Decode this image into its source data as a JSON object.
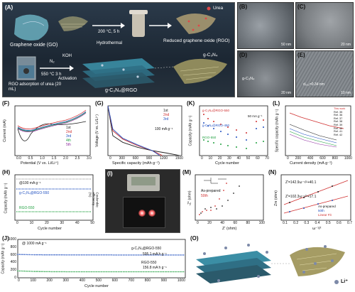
{
  "schematic": {
    "label": "(A)",
    "go_label": "Graphene oxide (GO)",
    "step1_top": "200 °C, 5 h",
    "step1_bottom": "Hydrothermal",
    "rgo_label": "Reduced graphene oxide (RGO)",
    "urea_legend": "Urea",
    "adsorption_label": "RGO adsorption of urea (20 mL)",
    "step2_top": "N₂",
    "step2_bottom": "550 °C 3 h",
    "step3_top": "KOH",
    "step3_bottom": "Activation",
    "composite_label": "g-C₃N₄@RGO",
    "gcn_label": "g-C₃N₄"
  },
  "micrographs": {
    "B": {
      "label": "(B)",
      "scale": "50 nm"
    },
    "C": {
      "label": "(C)",
      "scale": "20 nm"
    },
    "D": {
      "label": "(D)",
      "scale": "20 nm",
      "tag": "g-C₃N₄"
    },
    "E": {
      "label": "(E)",
      "scale": "10 nm",
      "tag": "d₀₀₂=0.34 nm"
    }
  },
  "panel_f": {
    "label": "(F)",
    "xlabel": "Potential (V vs. Li/Li⁺)",
    "ylabel": "Current (mA)",
    "legend": [
      "1st",
      "2nd",
      "3rd",
      "4th",
      "5th"
    ],
    "xticks": [
      "0.0",
      "0.5",
      "1.0",
      "1.5",
      "2.0",
      "2.5",
      "3.0"
    ]
  },
  "panel_g": {
    "label": "(G)",
    "xlabel": "Specific capacity (mAh g⁻¹)",
    "ylabel": "Voltage (V vs. Li/Li⁺)",
    "legend": [
      "1st",
      "2nd",
      "3rd"
    ],
    "note": "100 mA g⁻¹",
    "xticks": [
      "0",
      "300",
      "600",
      "900",
      "1200",
      "1500"
    ],
    "yticks": [
      "0",
      "1",
      "2",
      "3"
    ]
  },
  "panel_k": {
    "label": "(K)",
    "xlabel": "Cycle number",
    "ylabel": "Capacity (mAh g⁻¹)",
    "series": [
      "g-C₃N₄@RGO-550",
      "g-C₃N₄@RGO-450",
      "RGO-550"
    ],
    "rates": [
      "50 mA g⁻¹",
      "100",
      "200",
      "300",
      "500",
      "800"
    ],
    "xticks": [
      "0",
      "10",
      "20",
      "30",
      "40",
      "50",
      "60",
      "70"
    ]
  },
  "panel_l": {
    "label": "(L)",
    "xlabel": "Current density (mA g⁻¹)",
    "ylabel": "Specific capacity (mAh g⁻¹)",
    "legend": [
      "This work",
      "Ref. 35",
      "Ref. 36",
      "Ref. 37",
      "Ref. 38",
      "Ref. 39",
      "Ref. 40",
      "Ref. 41",
      "Ref. 42"
    ],
    "xticks": [
      "0",
      "200",
      "400",
      "600",
      "800",
      "1000"
    ]
  },
  "panel_h": {
    "label": "(H)",
    "xlabel": "Cycle number",
    "ylabel": "Capacity (mAh g⁻¹)",
    "ylabel2": "Coulombic efficiency (%)",
    "note": "@100 mA g⁻¹",
    "series": [
      "g-C₃N₄@RGO-550",
      "RGO-550"
    ],
    "xticks": [
      "0",
      "10",
      "20",
      "30",
      "40",
      "50"
    ]
  },
  "panel_i": {
    "label": "(I)"
  },
  "panel_m": {
    "label": "(M)",
    "xlabel": "Z' (ohm)",
    "ylabel": "-Z'' (ohm)",
    "legend": [
      "As-prepared",
      "50th"
    ],
    "xticks": [
      "0",
      "20",
      "40",
      "60",
      "80",
      "100"
    ]
  },
  "panel_n": {
    "label": "(N)",
    "xlabel": "ω⁻¹/²",
    "ylabel": "Zre (ohm)",
    "eq1": "Z'=142.9ω⁻¹/²+40.1",
    "eq2": "Z'=102.3ω⁻¹/²+17.1",
    "legend": [
      "As-prepared",
      "50th",
      "Linear Fit"
    ],
    "xticks": [
      "0.1",
      "0.2",
      "0.3",
      "0.4",
      "0.5",
      "0.6",
      "0.7"
    ]
  },
  "panel_j": {
    "label": "(J)",
    "xlabel": "Cycle number",
    "ylabel": "Capacity (mAh g⁻¹)",
    "note": "@ 1000 mA g⁻¹",
    "series1": "g-C₃N₄@RGO-550",
    "value1": "595.1 mA h g⁻¹",
    "series2": "RGO-550",
    "value2": "156.8 mA h g⁻¹",
    "xticks": [
      "0",
      "100",
      "200",
      "300",
      "400",
      "500",
      "600",
      "700",
      "800",
      "900",
      "1000"
    ],
    "yticks": [
      "0",
      "200",
      "400",
      "600",
      "800",
      "1000"
    ]
  },
  "panel_o": {
    "label": "(O)",
    "ion": "Li⁺"
  },
  "chart_data": [
    {
      "panel": "G",
      "type": "line",
      "series": [
        {
          "name": "1st",
          "x": [
            0,
            100,
            300,
            600,
            900,
            1200,
            1450
          ],
          "y": [
            3.0,
            1.2,
            0.8,
            0.5,
            0.3,
            0.15,
            0.01
          ]
        },
        {
          "name": "2nd",
          "x": [
            0,
            100,
            300,
            600,
            900,
            1100
          ],
          "y": [
            3.0,
            1.5,
            1.0,
            0.6,
            0.3,
            0.01
          ]
        },
        {
          "name": "3rd",
          "x": [
            0,
            100,
            300,
            600,
            900,
            1050
          ],
          "y": [
            3.0,
            1.6,
            1.05,
            0.65,
            0.3,
            0.01
          ]
        }
      ],
      "xlim": [
        0,
        1500
      ],
      "ylim": [
        0,
        3
      ]
    },
    {
      "panel": "J",
      "type": "scatter",
      "series": [
        {
          "name": "g-C₃N₄@RGO-550",
          "x": [
            0,
            100,
            200,
            300,
            400,
            500,
            600,
            700,
            800,
            900,
            1000
          ],
          "y": [
            610,
            600,
            598,
            597,
            596,
            596,
            595,
            595,
            595,
            595,
            595
          ]
        },
        {
          "name": "RGO-550",
          "x": [
            0,
            100,
            200,
            300,
            400,
            500,
            600,
            700,
            800,
            900,
            1000
          ],
          "y": [
            180,
            165,
            160,
            158,
            157,
            157,
            157,
            157,
            157,
            157,
            157
          ]
        }
      ],
      "xlim": [
        0,
        1000
      ],
      "ylim": [
        0,
        1000
      ]
    }
  ]
}
